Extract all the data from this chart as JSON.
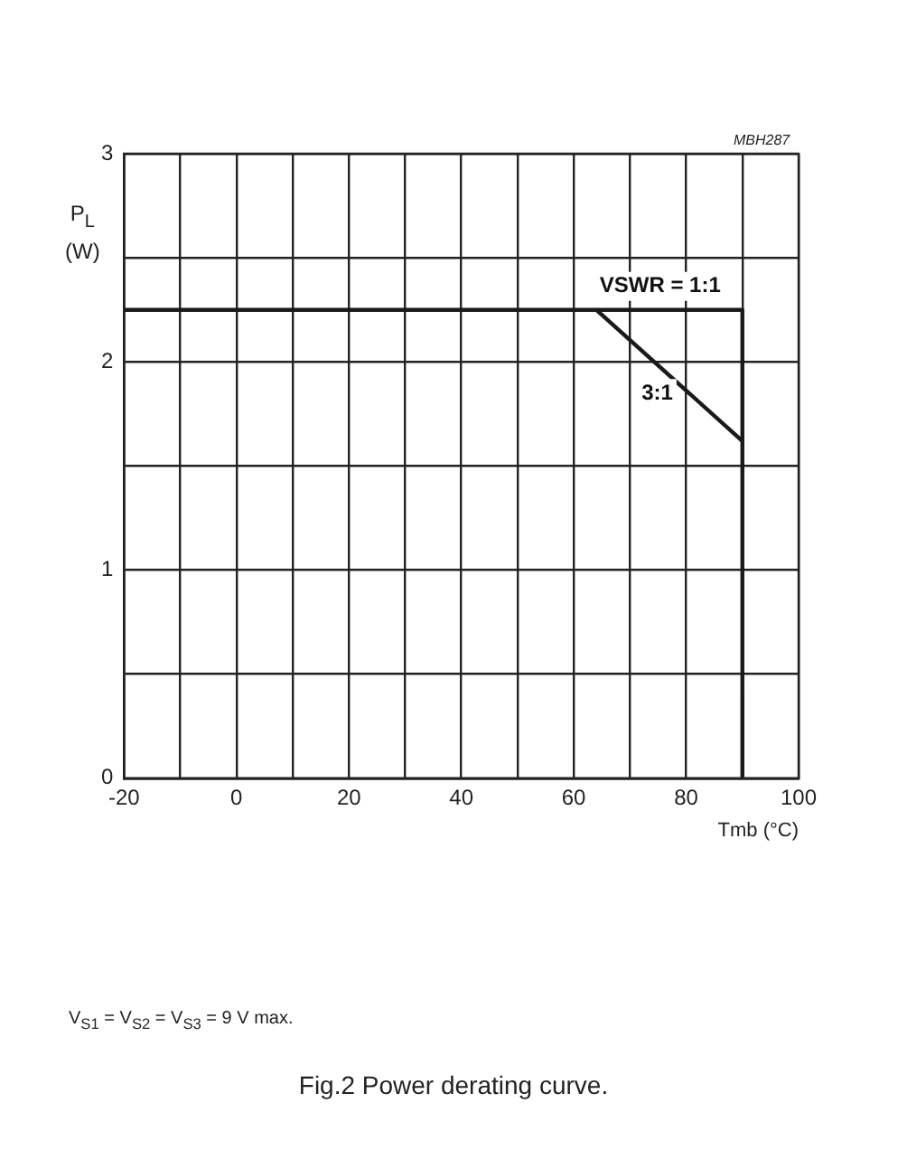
{
  "chart_data": {
    "type": "line",
    "title": "Fig.2  Power derating curve.",
    "xlabel": "Tmb (°C)",
    "ylabel": "P$_{L}$ (W)",
    "annotations": [
      "MBH287",
      "V$_{S1}$ = V$_{S2}$ = V$_{S3}$ = 9 V max."
    ],
    "xlim": [
      -20,
      100
    ],
    "xticks": [
      -20,
      {
        "value": -10,
        "label": null
      },
      0,
      {
        "value": 10,
        "label": null
      },
      20,
      {
        "value": 30,
        "label": null
      },
      40,
      {
        "value": 50,
        "label": null
      },
      60,
      {
        "value": 70,
        "label": null
      },
      80,
      {
        "value": 90,
        "label": null
      },
      100
    ],
    "ylim": [
      0,
      3
    ],
    "yticks": [
      0,
      {
        "value": 0.5,
        "label": null
      },
      1,
      {
        "value": 1.5,
        "label": null
      },
      2,
      {
        "value": 2.5,
        "label": null
      },
      3
    ],
    "grid": true,
    "legend": false,
    "marker": "none",
    "line_style": "solid",
    "series": [
      {
        "name": "VSWR = 1:1",
        "color": "#1a1a1a",
        "x": [
          -20,
          90,
          90
        ],
        "values": [
          2.25,
          2.25,
          0
        ]
      },
      {
        "name": "3:1",
        "color": "#1a1a1a",
        "x": [
          64,
          90
        ],
        "values": [
          2.25,
          1.62
        ]
      }
    ]
  }
}
